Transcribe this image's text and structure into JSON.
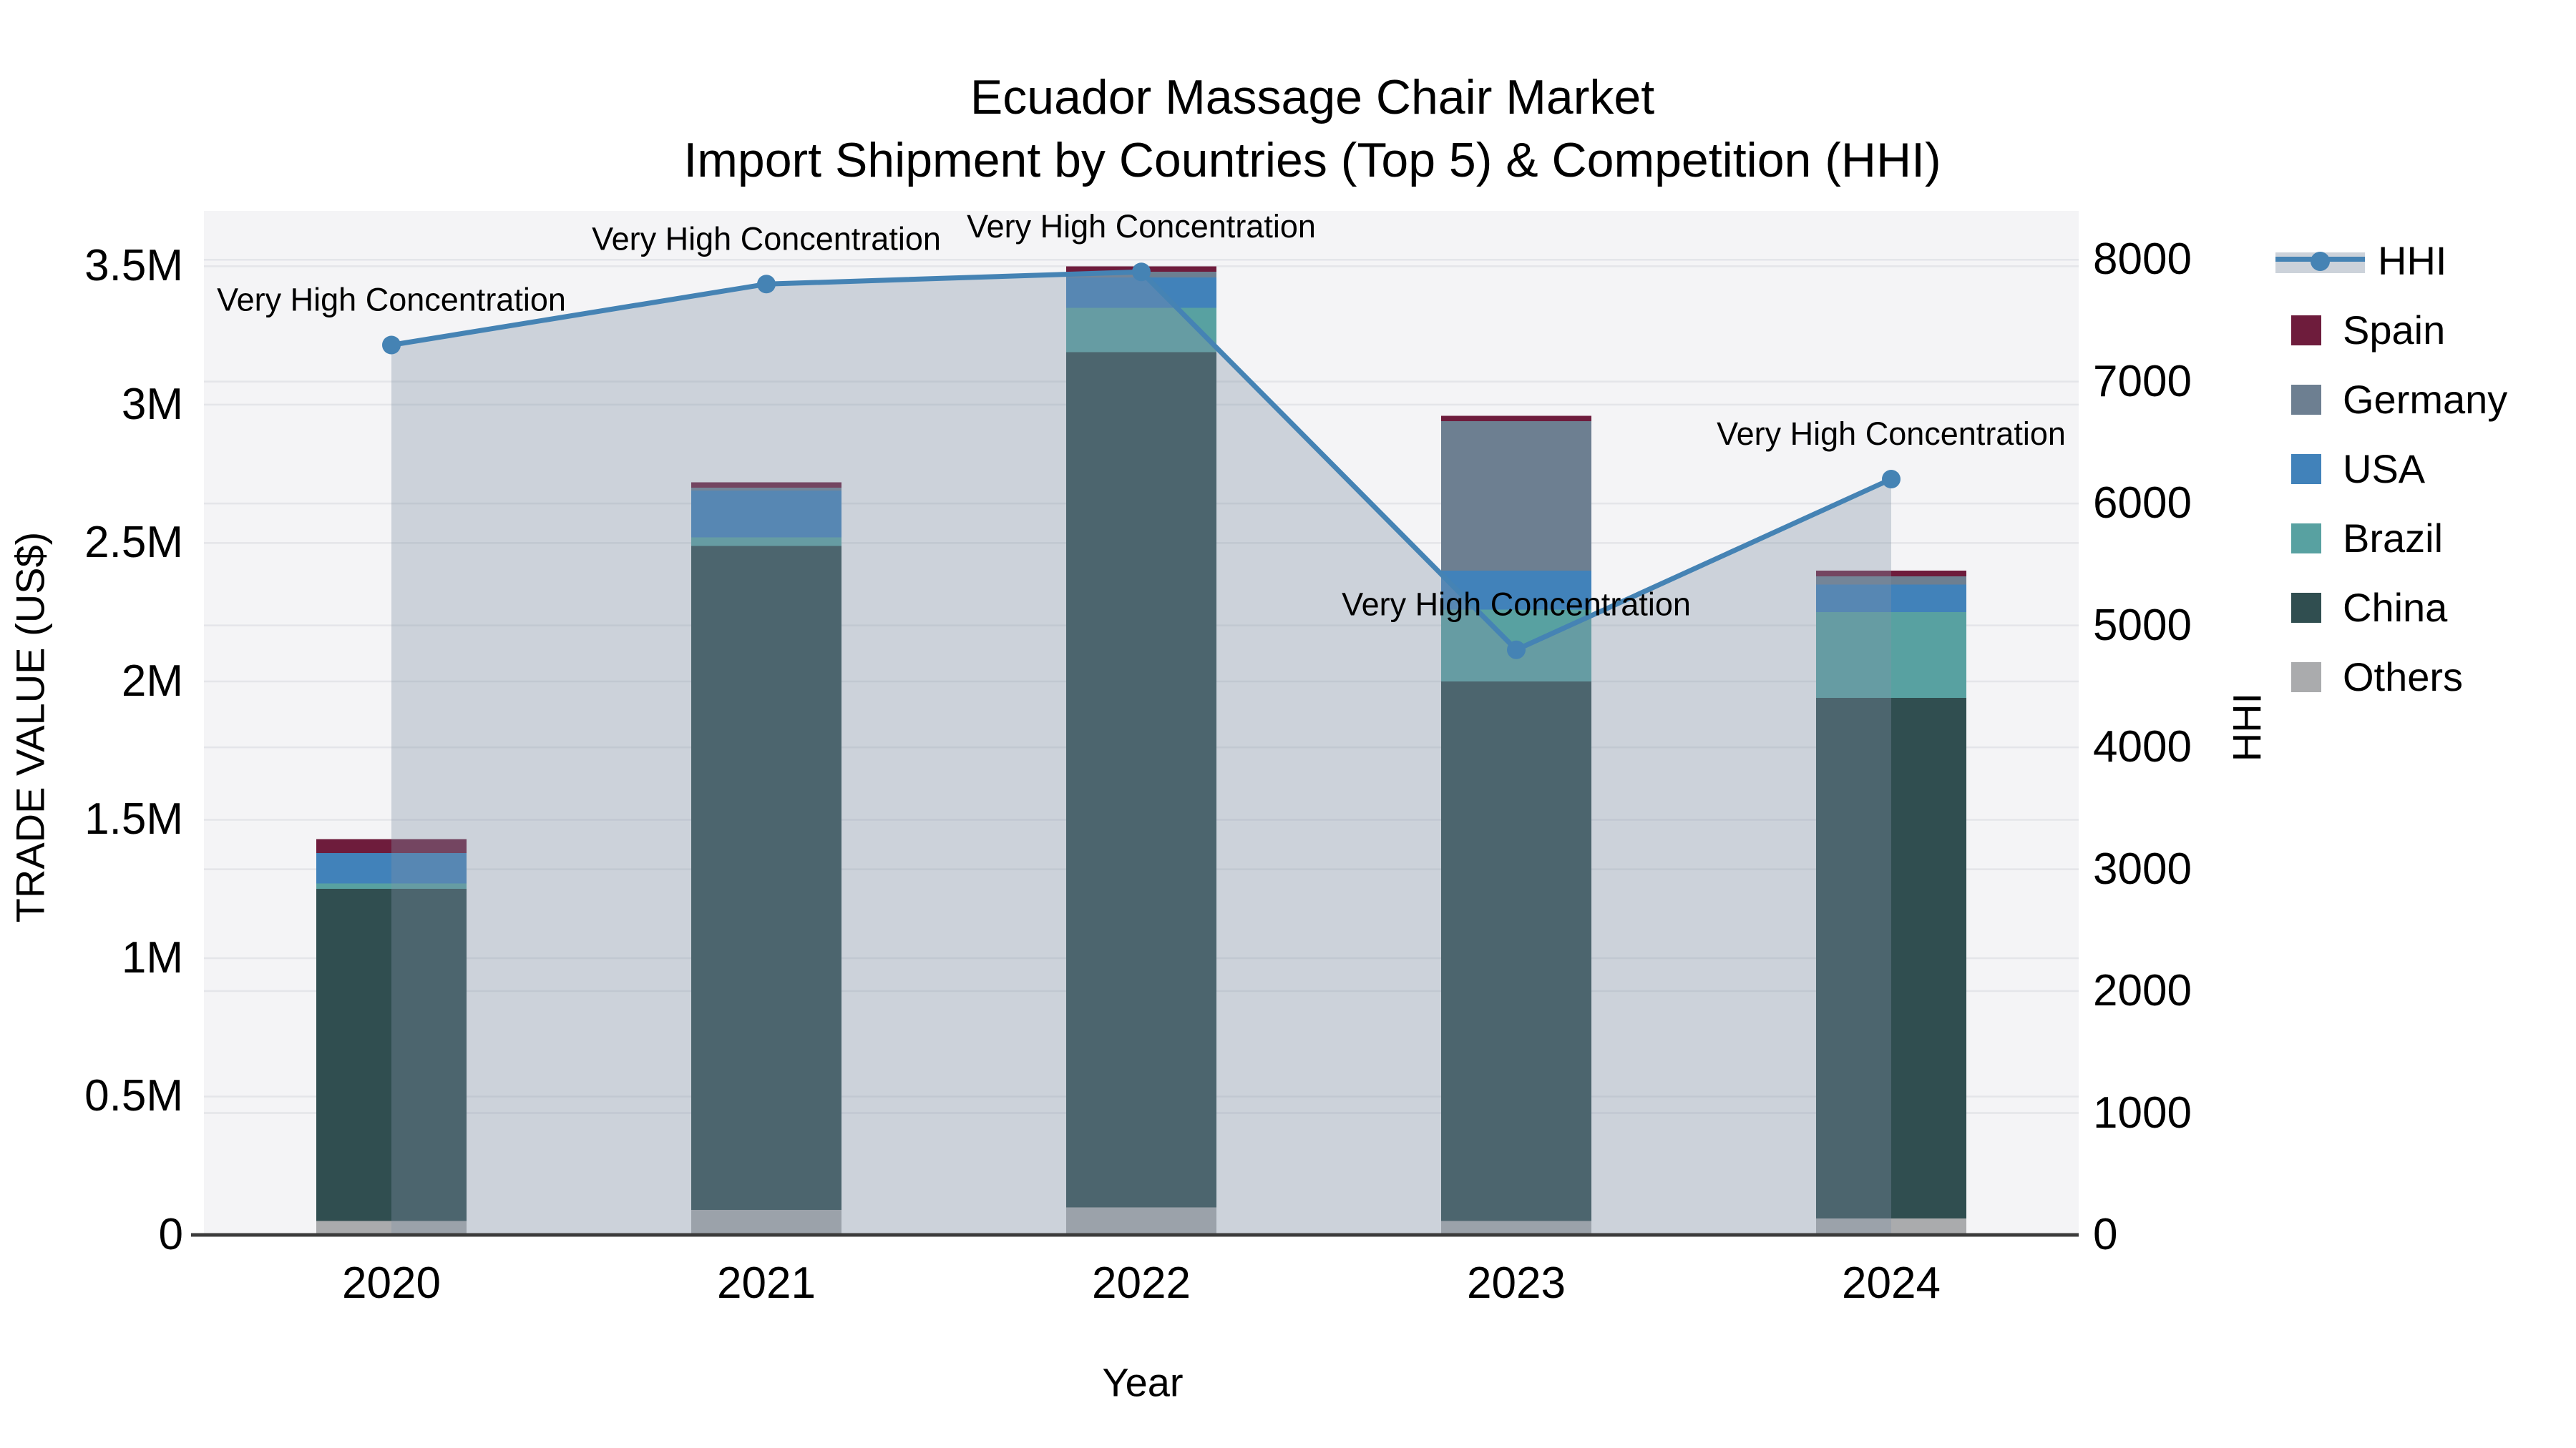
{
  "title": {
    "line1": "Ecuador Massage Chair Market",
    "line2": "Import Shipment by Countries (Top 5) & Competition (HHI)"
  },
  "chart_data": {
    "type": "bar",
    "subtype": "stacked-bars-with-secondary-axis-line",
    "title": "Ecuador Massage Chair Market — Import Shipment by Countries (Top 5) & Competition (HHI)",
    "categories": [
      "2020",
      "2021",
      "2022",
      "2023",
      "2024"
    ],
    "xlabel": "Year",
    "left_axis": {
      "label": "TRADE VALUE (US$)",
      "max_musd": 3.7,
      "ticks": [
        {
          "label": "0",
          "value": 0
        },
        {
          "label": "0.5M",
          "value": 0.5
        },
        {
          "label": "1M",
          "value": 1
        },
        {
          "label": "1.5M",
          "value": 1.5
        },
        {
          "label": "2M",
          "value": 2
        },
        {
          "label": "2.5M",
          "value": 2.5
        },
        {
          "label": "3M",
          "value": 3
        },
        {
          "label": "3.5M",
          "value": 3.5
        }
      ]
    },
    "right_axis": {
      "label": "HHI",
      "max": 8400,
      "ticks": [
        {
          "label": "0",
          "value": 0
        },
        {
          "label": "1000",
          "value": 1000
        },
        {
          "label": "2000",
          "value": 2000
        },
        {
          "label": "3000",
          "value": 3000
        },
        {
          "label": "4000",
          "value": 4000
        },
        {
          "label": "5000",
          "value": 5000
        },
        {
          "label": "6000",
          "value": 6000
        },
        {
          "label": "7000",
          "value": 7000
        },
        {
          "label": "8000",
          "value": 8000
        }
      ]
    },
    "series": [
      {
        "name": "Others",
        "color": "#aaabad",
        "values_musd": [
          0.05,
          0.09,
          0.1,
          0.05,
          0.06
        ]
      },
      {
        "name": "China",
        "color": "#304e50",
        "values_musd": [
          1.2,
          2.4,
          3.09,
          1.95,
          1.88
        ]
      },
      {
        "name": "Brazil",
        "color": "#58a1a1",
        "values_musd": [
          0.02,
          0.03,
          0.16,
          0.26,
          0.31
        ]
      },
      {
        "name": "USA",
        "color": "#4182ba",
        "values_musd": [
          0.11,
          0.17,
          0.11,
          0.14,
          0.1
        ]
      },
      {
        "name": "Germany",
        "color": "#6d7f91",
        "values_musd": [
          0.0,
          0.01,
          0.02,
          0.54,
          0.03
        ]
      },
      {
        "name": "Spain",
        "color": "#6e1c3c",
        "values_musd": [
          0.05,
          0.02,
          0.02,
          0.02,
          0.02
        ]
      }
    ],
    "line_series": {
      "name": "HHI",
      "color": "#4583b4",
      "fill_color": "rgba(128,145,167,0.35)",
      "values": [
        7300,
        7800,
        7900,
        4800,
        6200
      ]
    },
    "annotations": [
      {
        "text": "Very High Concentration",
        "x_index": 0
      },
      {
        "text": "Very High Concentration",
        "x_index": 1
      },
      {
        "text": "Very High Concentration",
        "x_index": 2
      },
      {
        "text": "Very High Concentration",
        "x_index": 3
      },
      {
        "text": "Very High Concentration",
        "x_index": 4
      }
    ],
    "legend_position": "right"
  },
  "legend": {
    "items": [
      {
        "label": "HHI",
        "color": "#4583b4",
        "band_color": "#ccd2da",
        "type": "line"
      },
      {
        "label": "Spain",
        "color": "#6e1c3c",
        "type": "swatch"
      },
      {
        "label": "Germany",
        "color": "#6d7f91",
        "type": "swatch"
      },
      {
        "label": "USA",
        "color": "#4182ba",
        "type": "swatch"
      },
      {
        "label": "Brazil",
        "color": "#58a1a1",
        "type": "swatch"
      },
      {
        "label": "China",
        "color": "#304e50",
        "type": "swatch"
      },
      {
        "label": "Others",
        "color": "#aaabad",
        "type": "swatch"
      }
    ]
  },
  "colors": {
    "plot_bg": "#f4f4f6",
    "grid": "#e4e5e9",
    "axis_line": "#3b3b3b",
    "text": "#000000"
  }
}
